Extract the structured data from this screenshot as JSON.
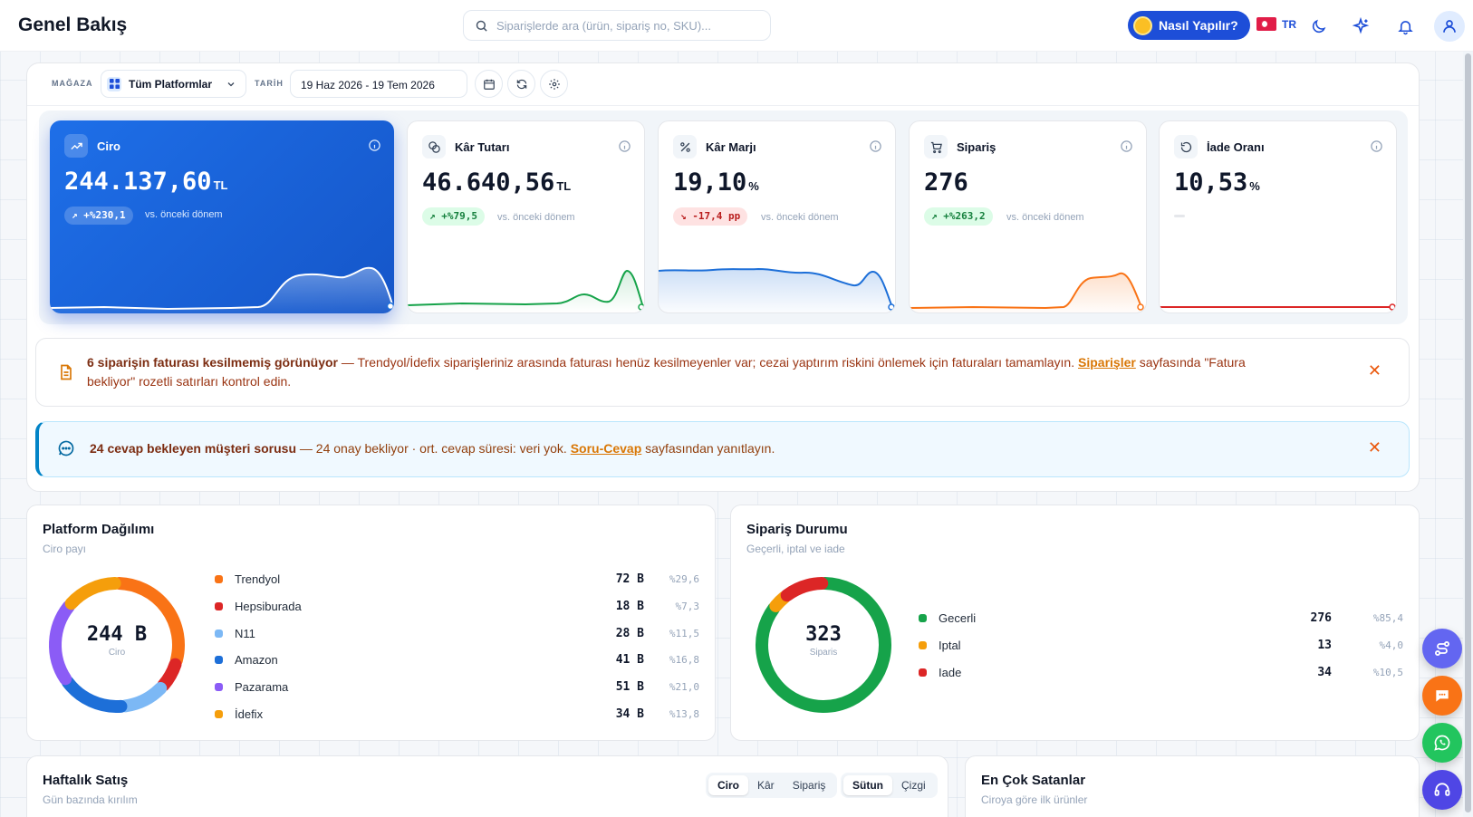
{
  "header": {
    "title": "Genel Bakış",
    "search_placeholder": "Siparişlerde ara (ürün, sipariş no, SKU)...",
    "how_to_label": "Nasıl Yapılır?",
    "language": "TR"
  },
  "filters": {
    "store_label": "MAĞAZA",
    "store_value": "Tüm Platformlar",
    "date_label": "TARİH",
    "date_value": "19 Haz 2026 - 19 Tem 2026"
  },
  "kpis": [
    {
      "title": "Ciro",
      "value": "244.137,60",
      "unit": "TL",
      "delta": "+%230,1",
      "delta_dir": "up",
      "vs": "vs. önceki dönem",
      "color": "#ffffff"
    },
    {
      "title": "Kâr Tutarı",
      "value": "46.640,56",
      "unit": "TL",
      "delta": "+%79,5",
      "delta_dir": "up",
      "vs": "vs. önceki dönem",
      "color": "#16a34a"
    },
    {
      "title": "Kâr Marjı",
      "value": "19,10",
      "unit": "%",
      "delta": "-17,4 pp",
      "delta_dir": "down",
      "vs": "vs. önceki dönem",
      "color": "#1d6fd8"
    },
    {
      "title": "Sipariş",
      "value": "276",
      "unit": "",
      "delta": "+%263,2",
      "delta_dir": "up",
      "vs": "vs. önceki dönem",
      "color": "#f97316"
    },
    {
      "title": "İade Oranı",
      "value": "10,53",
      "unit": "%",
      "delta": "",
      "delta_dir": "",
      "vs": "",
      "color": "#dc2626"
    }
  ],
  "alerts": {
    "invoice": {
      "bold": "6 siparişin faturası kesilmemiş görünüyor",
      "text": " — Trendyol/İdefix siparişleriniz arasında faturası henüz kesilmeyenler var; cezai yaptırım riskini önlemek için faturaları tamamlayın. ",
      "link": "Siparişler",
      "tail": " sayfasında \"Fatura bekliyor\" rozetli satırları kontrol edin."
    },
    "questions": {
      "bold": "24 cevap bekleyen müşteri sorusu",
      "text": " — 24 onay bekliyor · ort. cevap süresi: veri yok. ",
      "link": "Soru-Cevap",
      "tail": " sayfasından yanıtlayın."
    }
  },
  "platform": {
    "title": "Platform Dağılımı",
    "subtitle": "Ciro payı",
    "center_value": "244 B",
    "center_label": "Ciro",
    "items": [
      {
        "name": "Trendyol",
        "value": "72 B",
        "pct": "%29,6",
        "share": 29.6,
        "color": "#f97316"
      },
      {
        "name": "Hepsiburada",
        "value": "18 B",
        "pct": "%7,3",
        "share": 7.3,
        "color": "#dc2626"
      },
      {
        "name": "N11",
        "value": "28 B",
        "pct": "%11,5",
        "share": 11.5,
        "color": "#7cb8f5"
      },
      {
        "name": "Amazon",
        "value": "41 B",
        "pct": "%16,8",
        "share": 16.8,
        "color": "#1d6fd8"
      },
      {
        "name": "Pazarama",
        "value": "51 B",
        "pct": "%21,0",
        "share": 21.0,
        "color": "#8b5cf6"
      },
      {
        "name": "İdefix",
        "value": "34 B",
        "pct": "%13,8",
        "share": 13.8,
        "color": "#f59e0b"
      }
    ]
  },
  "orders": {
    "title": "Sipariş Durumu",
    "subtitle": "Geçerli, iptal ve iade",
    "center_value": "323",
    "center_label": "Siparis",
    "items": [
      {
        "name": "Gecerli",
        "value": "276",
        "pct": "%85,4",
        "share": 85.4,
        "color": "#16a34a"
      },
      {
        "name": "Iptal",
        "value": "13",
        "pct": "%4,0",
        "share": 4.0,
        "color": "#f59e0b"
      },
      {
        "name": "Iade",
        "value": "34",
        "pct": "%10,5",
        "share": 10.5,
        "color": "#dc2626"
      }
    ]
  },
  "weekly": {
    "title": "Haftalık Satış",
    "subtitle": "Gün bazında kırılım",
    "metric_tabs": [
      "Ciro",
      "Kâr",
      "Sipariş"
    ],
    "chart_tabs": [
      "Sütun",
      "Çizgi"
    ]
  },
  "bestsellers": {
    "title": "En Çok Satanlar",
    "subtitle": "Ciroya göre ilk ürünler"
  }
}
